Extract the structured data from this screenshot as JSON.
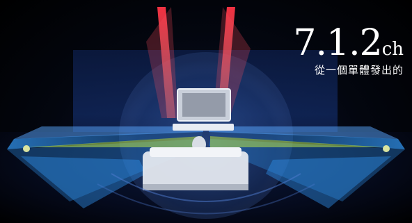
{
  "headline": {
    "channels": "7.1.2",
    "unit": "ch",
    "subtitle": "從一個單體發出的"
  },
  "colors": {
    "beam_red": "#e0283a",
    "beam_blue": "#2f8fe6",
    "beam_green": "#b7e24a",
    "dome": "#2a4c8f"
  }
}
